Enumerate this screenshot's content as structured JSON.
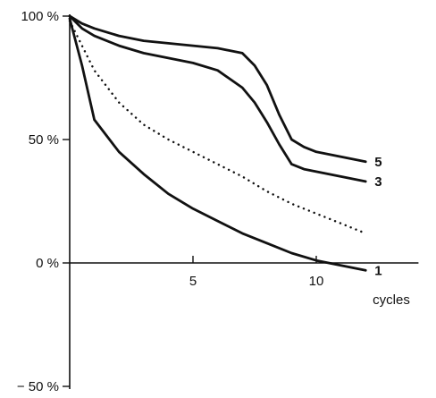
{
  "chart_data": {
    "type": "line",
    "title": "",
    "xlabel": "cycles",
    "ylabel": "",
    "xlim": [
      0,
      14
    ],
    "ylim": [
      -50,
      100
    ],
    "x_ticks": [
      {
        "value": 5,
        "label": "5"
      },
      {
        "value": 10,
        "label": "10"
      }
    ],
    "y_ticks": [
      {
        "value": 100,
        "label": "100 %"
      },
      {
        "value": 50,
        "label": "50 %"
      },
      {
        "value": 0,
        "label": "0 %"
      },
      {
        "value": -50,
        "label": "− 50 %"
      }
    ],
    "grid": false,
    "legend": "none",
    "series": [
      {
        "label": "5",
        "style": "solid",
        "color": "#111111",
        "points": [
          [
            0,
            100
          ],
          [
            0.5,
            97
          ],
          [
            1,
            95
          ],
          [
            2,
            92
          ],
          [
            3,
            90
          ],
          [
            4,
            89
          ],
          [
            5,
            88
          ],
          [
            6,
            87
          ],
          [
            7,
            85
          ],
          [
            7.5,
            80
          ],
          [
            8,
            72
          ],
          [
            8.5,
            60
          ],
          [
            9,
            50
          ],
          [
            9.5,
            47
          ],
          [
            10,
            45
          ],
          [
            11,
            43
          ],
          [
            12,
            41
          ]
        ]
      },
      {
        "label": "3",
        "style": "solid",
        "color": "#111111",
        "points": [
          [
            0,
            100
          ],
          [
            0.5,
            95
          ],
          [
            1,
            92
          ],
          [
            2,
            88
          ],
          [
            3,
            85
          ],
          [
            4,
            83
          ],
          [
            5,
            81
          ],
          [
            6,
            78
          ],
          [
            7,
            71
          ],
          [
            7.5,
            65
          ],
          [
            8,
            57
          ],
          [
            8.5,
            48
          ],
          [
            9,
            40
          ],
          [
            9.5,
            38
          ],
          [
            10,
            37
          ],
          [
            11,
            35
          ],
          [
            12,
            33
          ]
        ]
      },
      {
        "label": "",
        "style": "dotted",
        "color": "#111111",
        "points": [
          [
            0,
            98
          ],
          [
            0.5,
            88
          ],
          [
            1,
            78
          ],
          [
            2,
            65
          ],
          [
            3,
            56
          ],
          [
            4,
            50
          ],
          [
            5,
            45
          ],
          [
            6,
            40
          ],
          [
            7,
            35
          ],
          [
            8,
            29
          ],
          [
            9,
            24
          ],
          [
            10,
            20
          ],
          [
            11,
            16
          ],
          [
            12,
            12
          ]
        ]
      },
      {
        "label": "1",
        "style": "solid",
        "color": "#111111",
        "points": [
          [
            0,
            99
          ],
          [
            0.5,
            80
          ],
          [
            1,
            58
          ],
          [
            2,
            45
          ],
          [
            3,
            36
          ],
          [
            4,
            28
          ],
          [
            5,
            22
          ],
          [
            6,
            17
          ],
          [
            7,
            12
          ],
          [
            8,
            8
          ],
          [
            9,
            4
          ],
          [
            10,
            1
          ],
          [
            11,
            -1
          ],
          [
            12,
            -3
          ]
        ]
      }
    ]
  }
}
